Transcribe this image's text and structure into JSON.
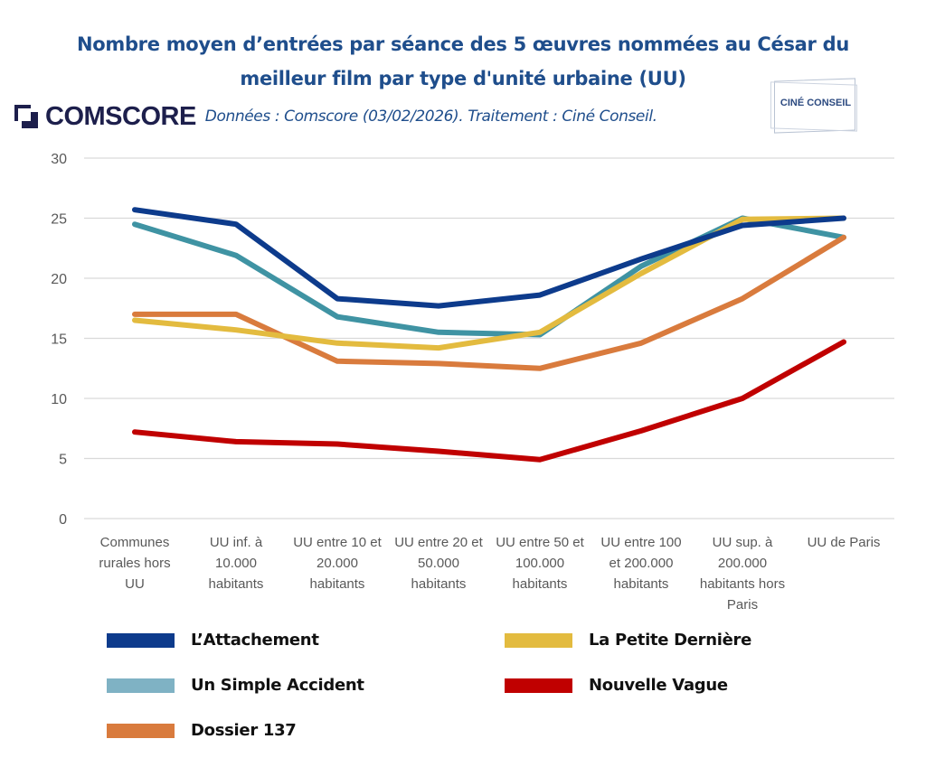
{
  "header": {
    "title_line1": "Nombre moyen d’entrées par séance des 5 œuvres nommées au César du",
    "title_line2": "meilleur film par type d'unité urbaine (UU)",
    "brand": "COMSCORE",
    "source": "Données : Comscore (03/02/2026). Traitement : Ciné Conseil.",
    "partner_logo": "CINÉ CONSEIL"
  },
  "colors": {
    "title": "#1f4e8c",
    "grid": "#d9d9d9",
    "axis_text": "#595959"
  },
  "chart_data": {
    "type": "line",
    "title": "Nombre moyen d’entrées par séance des 5 œuvres nommées au César du meilleur film par type d'unité urbaine (UU)",
    "xlabel": "",
    "ylabel": "",
    "ylim": [
      0,
      30
    ],
    "yticks": [
      0,
      5,
      10,
      15,
      20,
      25,
      30
    ],
    "grid": true,
    "legend_position": "bottom",
    "categories": [
      [
        "Communes",
        "rurales hors",
        "UU"
      ],
      [
        "UU inf. à",
        "10.000",
        "habitants"
      ],
      [
        "UU entre 10 et",
        "20.000",
        "habitants"
      ],
      [
        "UU entre 20 et",
        "50.000",
        "habitants"
      ],
      [
        "UU entre 50 et",
        "100.000",
        "habitants"
      ],
      [
        "UU entre 100",
        "et 200.000",
        "habitants"
      ],
      [
        "UU sup. à",
        "200.000",
        "habitants hors",
        "Paris"
      ],
      [
        "UU de Paris"
      ]
    ],
    "series": [
      {
        "name": "L’Attachement",
        "color": "#0d3b8c",
        "legend_color": "#0d3b8c",
        "values": [
          25.7,
          24.5,
          18.3,
          17.7,
          18.6,
          21.6,
          24.4,
          25.0
        ]
      },
      {
        "name": "Un Simple Accident",
        "color": "#3f93a3",
        "legend_color": "#7fb2c4",
        "values": [
          24.5,
          21.9,
          16.8,
          15.5,
          15.3,
          21.0,
          25.0,
          23.4
        ]
      },
      {
        "name": "Dossier 137",
        "color": "#d97b3d",
        "legend_color": "#d97b3d",
        "values": [
          17.0,
          17.0,
          13.1,
          12.9,
          12.5,
          14.6,
          18.3,
          23.4
        ]
      },
      {
        "name": "La Petite Dernière",
        "color": "#e3bb3f",
        "legend_color": "#e3bb3f",
        "values": [
          16.5,
          15.7,
          14.6,
          14.2,
          15.5,
          20.4,
          24.9,
          25.0
        ]
      },
      {
        "name": "Nouvelle Vague",
        "color": "#c00000",
        "legend_color": "#c00000",
        "values": [
          7.2,
          6.4,
          6.2,
          5.6,
          4.9,
          7.3,
          10.0,
          14.7
        ]
      }
    ]
  }
}
